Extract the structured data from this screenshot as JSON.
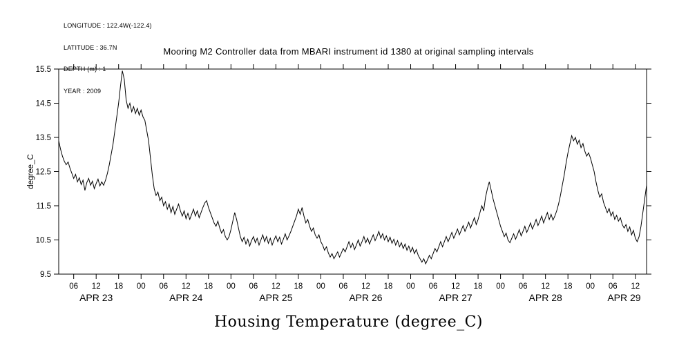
{
  "meta": {
    "longitude": "LONGITUDE : 122.4W(-122.4)",
    "latitude": "LATITUDE : 36.7N",
    "depth": "DEPTH (m) : 1",
    "year": "YEAR : 2009"
  },
  "title": "Mooring M2 Controller data from MBARI instrument id 1380 at original sampling intervals",
  "bottom_title": "Housing Temperature (degree_C)",
  "chart_data": {
    "type": "line",
    "title": "Mooring M2 Controller data from MBARI instrument id 1380 at original sampling intervals",
    "footer_title": "Housing Temperature (degree_C)",
    "ylabel": "degree_C",
    "y_domain": [
      9.5,
      15.5
    ],
    "y_ticks": [
      9.5,
      10.5,
      11.5,
      12.5,
      13.5,
      14.5,
      15.5
    ],
    "x_unit": "hours from 2009-04-23 00:00",
    "x_domain_hours": [
      2,
      159
    ],
    "x_start_hour": 2,
    "x_step_hours": 0.5,
    "grid": false,
    "legend": false,
    "line_color": "#000000",
    "x_ticks": [
      [
        6,
        "06"
      ],
      [
        12,
        "12"
      ],
      [
        18,
        "18"
      ],
      [
        24,
        "00"
      ],
      [
        30,
        "06"
      ],
      [
        36,
        "12"
      ],
      [
        42,
        "18"
      ],
      [
        48,
        "00"
      ],
      [
        54,
        "06"
      ],
      [
        60,
        "12"
      ],
      [
        66,
        "18"
      ],
      [
        72,
        "00"
      ],
      [
        78,
        "06"
      ],
      [
        84,
        "12"
      ],
      [
        90,
        "18"
      ],
      [
        96,
        "00"
      ],
      [
        102,
        "06"
      ],
      [
        108,
        "12"
      ],
      [
        114,
        "18"
      ],
      [
        120,
        "00"
      ],
      [
        126,
        "06"
      ],
      [
        132,
        "12"
      ],
      [
        138,
        "18"
      ],
      [
        144,
        "00"
      ],
      [
        150,
        "06"
      ],
      [
        156,
        "12"
      ]
    ],
    "day_labels": [
      [
        12,
        "APR 23"
      ],
      [
        36,
        "APR 24"
      ],
      [
        60,
        "APR 25"
      ],
      [
        84,
        "APR 26"
      ],
      [
        108,
        "APR 27"
      ],
      [
        132,
        "APR 28"
      ],
      [
        153,
        "APR 29"
      ]
    ],
    "values": [
      13.4,
      13.15,
      12.95,
      12.8,
      12.7,
      12.78,
      12.6,
      12.45,
      12.3,
      12.42,
      12.2,
      12.32,
      12.12,
      12.25,
      11.95,
      12.18,
      12.3,
      12.1,
      12.22,
      12.0,
      12.15,
      12.28,
      12.08,
      12.2,
      12.1,
      12.25,
      12.45,
      12.7,
      13.0,
      13.3,
      13.7,
      14.1,
      14.5,
      15.0,
      15.45,
      15.2,
      14.6,
      14.35,
      14.5,
      14.25,
      14.4,
      14.2,
      14.35,
      14.15,
      14.3,
      14.1,
      14.0,
      13.7,
      13.4,
      12.9,
      12.4,
      12.0,
      11.8,
      11.9,
      11.65,
      11.75,
      11.5,
      11.62,
      11.4,
      11.55,
      11.3,
      11.48,
      11.25,
      11.4,
      11.55,
      11.35,
      11.2,
      11.35,
      11.12,
      11.28,
      11.1,
      11.25,
      11.4,
      11.2,
      11.35,
      11.15,
      11.3,
      11.45,
      11.58,
      11.65,
      11.45,
      11.3,
      11.15,
      11.0,
      10.9,
      11.05,
      10.85,
      10.7,
      10.8,
      10.6,
      10.5,
      10.6,
      10.8,
      11.05,
      11.3,
      11.1,
      10.85,
      10.6,
      10.45,
      10.58,
      10.38,
      10.52,
      10.32,
      10.48,
      10.6,
      10.42,
      10.55,
      10.35,
      10.5,
      10.65,
      10.45,
      10.6,
      10.4,
      10.55,
      10.35,
      10.5,
      10.62,
      10.45,
      10.58,
      10.38,
      10.52,
      10.68,
      10.5,
      10.62,
      10.75,
      10.9,
      11.05,
      11.2,
      11.4,
      11.25,
      11.45,
      11.2,
      11.0,
      11.1,
      10.9,
      10.75,
      10.85,
      10.65,
      10.55,
      10.65,
      10.45,
      10.35,
      10.2,
      10.3,
      10.12,
      10.0,
      10.1,
      9.95,
      10.05,
      10.15,
      10.0,
      10.12,
      10.25,
      10.15,
      10.3,
      10.45,
      10.28,
      10.4,
      10.22,
      10.35,
      10.5,
      10.32,
      10.45,
      10.6,
      10.42,
      10.55,
      10.38,
      10.52,
      10.65,
      10.48,
      10.6,
      10.75,
      10.55,
      10.68,
      10.5,
      10.62,
      10.45,
      10.58,
      10.4,
      10.52,
      10.35,
      10.48,
      10.3,
      10.42,
      10.25,
      10.38,
      10.2,
      10.32,
      10.15,
      10.28,
      10.1,
      10.22,
      10.05,
      9.95,
      9.85,
      9.95,
      9.8,
      9.92,
      10.05,
      9.95,
      10.1,
      10.25,
      10.15,
      10.3,
      10.45,
      10.3,
      10.45,
      10.6,
      10.45,
      10.58,
      10.72,
      10.55,
      10.68,
      10.82,
      10.65,
      10.78,
      10.92,
      10.75,
      10.88,
      11.02,
      10.85,
      11.0,
      11.15,
      10.95,
      11.1,
      11.3,
      11.5,
      11.35,
      11.75,
      12.0,
      12.2,
      11.95,
      11.7,
      11.5,
      11.3,
      11.1,
      10.9,
      10.75,
      10.6,
      10.7,
      10.5,
      10.42,
      10.55,
      10.68,
      10.52,
      10.65,
      10.8,
      10.62,
      10.75,
      10.9,
      10.72,
      10.85,
      11.0,
      10.82,
      10.95,
      11.1,
      10.92,
      11.05,
      11.2,
      11.0,
      11.15,
      11.3,
      11.1,
      11.25,
      11.08,
      11.2,
      11.35,
      11.55,
      11.8,
      12.1,
      12.4,
      12.75,
      13.05,
      13.3,
      13.55,
      13.4,
      13.5,
      13.3,
      13.42,
      13.2,
      13.32,
      13.1,
      12.95,
      13.05,
      12.9,
      12.7,
      12.5,
      12.2,
      11.95,
      11.75,
      11.85,
      11.6,
      11.45,
      11.3,
      11.42,
      11.2,
      11.32,
      11.1,
      11.22,
      11.05,
      11.15,
      10.95,
      10.85,
      10.95,
      10.75,
      10.88,
      10.65,
      10.78,
      10.55,
      10.45,
      10.6,
      10.9,
      11.3,
      11.7,
      12.1
    ]
  }
}
